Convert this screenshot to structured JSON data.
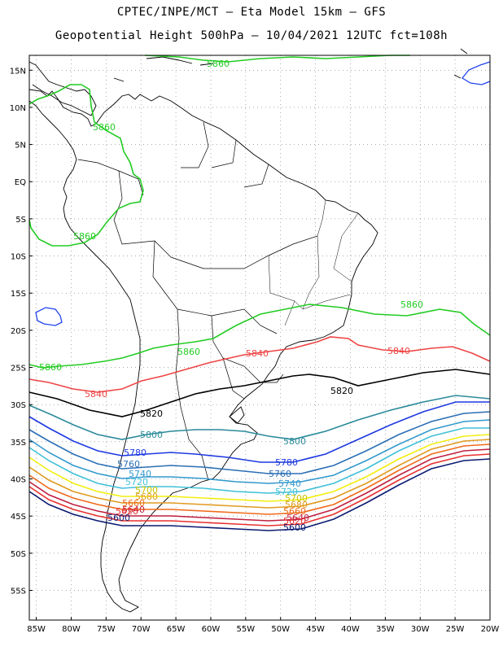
{
  "header": {
    "line1": "CPTEC/INPE/MCT –  Eta Model 15km – GFS",
    "line2": "Geopotential Height 500hPa – 10/04/2021 12UTC fct=108h"
  },
  "map": {
    "lon_range": [
      -86,
      -20
    ],
    "lat_range": [
      -59,
      17
    ],
    "lon_ticks": [
      -85,
      -80,
      -75,
      -70,
      -65,
      -60,
      -55,
      -50,
      -45,
      -40,
      -35,
      -30,
      -25,
      -20
    ],
    "lon_tick_labels": [
      "85W",
      "80W",
      "75W",
      "70W",
      "65W",
      "60W",
      "55W",
      "50W",
      "45W",
      "40W",
      "35W",
      "30W",
      "25W",
      "20W"
    ],
    "lat_ticks": [
      15,
      10,
      5,
      0,
      -5,
      -10,
      -15,
      -20,
      -25,
      -30,
      -35,
      -40,
      -45,
      -50,
      -55
    ],
    "lat_tick_labels": [
      "15N",
      "10N",
      "5N",
      "EQ",
      "5S",
      "10S",
      "15S",
      "20S",
      "25S",
      "30S",
      "35S",
      "40S",
      "45S",
      "50S",
      "55S"
    ],
    "grid": "dotted",
    "colors": {
      "coast": "#000000",
      "c5860": "#22cc22",
      "c5840": "#ee4444",
      "c5820": "#000000",
      "c5800": "#2a8a9a",
      "c5780": "#1d39e0",
      "c5760": "#2b6fb5",
      "c5740": "#3399cc",
      "c5720": "#40c0d8",
      "c5700": "#f2ee10",
      "c5680": "#e09a20",
      "c5660": "#f06a1a",
      "c5640": "#c02040",
      "c5620": "#e83030",
      "c5600": "#0a1a70",
      "blue_small": "#2244ee"
    },
    "contour_labels": {
      "l5860a": "5860",
      "l5860b": "5860",
      "l5860c": "5860",
      "l5860d": "5860",
      "l5860e": "5860",
      "l5860f": "5860",
      "l5840a": "5840",
      "l5840b": "5840",
      "l5840c": "5840",
      "l5820a": "5820",
      "l5820b": "5820",
      "l5800a": "5800",
      "l5800b": "5800",
      "l5780a": "5780",
      "l5780b": "5780",
      "l5760a": "5760",
      "l5760b": "5760",
      "l5740a": "5740",
      "l5740b": "5740",
      "l5720a": "5720",
      "l5720b": "5720",
      "l5700a": "5700",
      "l5700b": "5700",
      "l5680a": "5680",
      "l5680b": "5680",
      "l5660a": "5660",
      "l5660b": "5660",
      "l5640a": "5640",
      "l5640b": "5640",
      "l5620a": "5620",
      "l5620b": "5620",
      "l5600a": "5600",
      "l5600b": "5600"
    }
  }
}
